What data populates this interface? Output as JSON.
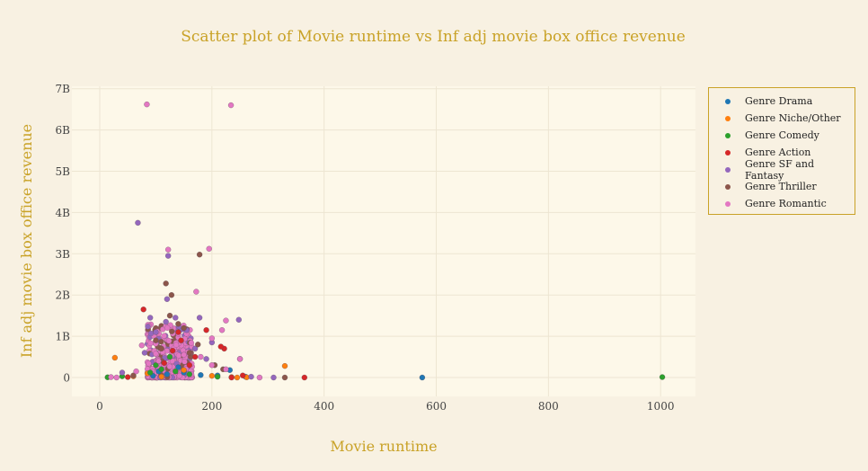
{
  "colors": {
    "page_bg": "#f8f1e2",
    "plot_bg": "#fdf8e9",
    "grid": "#ede5d2",
    "accent": "#c9a227",
    "tick_text": "#444444"
  },
  "chart_data": {
    "type": "scatter",
    "title": "Scatter plot of Movie runtime vs Inf adj movie box office revenue",
    "xlabel": "Movie runtime",
    "ylabel": "Inf adj movie box office revenue",
    "xlim": [
      -50,
      1060
    ],
    "ylim": [
      -450000000,
      7100000000
    ],
    "x_ticks": [
      0,
      200,
      400,
      600,
      800,
      1000
    ],
    "x_tick_labels": [
      "0",
      "200",
      "400",
      "600",
      "800",
      "1000"
    ],
    "y_ticks": [
      0,
      1000000000,
      2000000000,
      3000000000,
      4000000000,
      5000000000,
      6000000000,
      7000000000
    ],
    "y_tick_labels": [
      "0",
      "1B",
      "2B",
      "3B",
      "4B",
      "5B",
      "6B",
      "7B"
    ],
    "grid": true,
    "legend_position": "top-right",
    "series": [
      {
        "name": "Genre Drama",
        "color": "#1f77b4",
        "points": [
          [
            575,
            0
          ],
          [
            232,
            180000000
          ],
          [
            210,
            50000000
          ],
          [
            150,
            120000000
          ],
          [
            120,
            80000000
          ],
          [
            95,
            40000000
          ],
          [
            180,
            60000000
          ],
          [
            260,
            20000000
          ],
          [
            140,
            250000000
          ],
          [
            105,
            150000000
          ]
        ]
      },
      {
        "name": "Genre Niche/Other",
        "color": "#ff7f0e",
        "points": [
          [
            27,
            480000000
          ],
          [
            330,
            280000000
          ],
          [
            245,
            0
          ],
          [
            235,
            10000000
          ],
          [
            60,
            30000000
          ],
          [
            85,
            100000000
          ],
          [
            150,
            180000000
          ],
          [
            200,
            40000000
          ],
          [
            110,
            20000000
          ],
          [
            262,
            5000000
          ]
        ]
      },
      {
        "name": "Genre Comedy",
        "color": "#2ca02c",
        "points": [
          [
            1003,
            10000000
          ],
          [
            14,
            5000000
          ],
          [
            40,
            30000000
          ],
          [
            90,
            120000000
          ],
          [
            100,
            300000000
          ],
          [
            110,
            200000000
          ],
          [
            125,
            500000000
          ],
          [
            135,
            150000000
          ],
          [
            160,
            80000000
          ],
          [
            210,
            20000000
          ]
        ]
      },
      {
        "name": "Genre Action",
        "color": "#d62728",
        "points": [
          [
            78,
            1650000000
          ],
          [
            190,
            1150000000
          ],
          [
            222,
            700000000
          ],
          [
            216,
            750000000
          ],
          [
            365,
            0
          ],
          [
            255,
            50000000
          ],
          [
            235,
            0
          ],
          [
            50,
            10000000
          ],
          [
            145,
            900000000
          ],
          [
            130,
            650000000
          ],
          [
            170,
            500000000
          ],
          [
            115,
            350000000
          ],
          [
            160,
            300000000
          ],
          [
            140,
            1100000000
          ]
        ]
      },
      {
        "name": "Genre SF and Fantasy",
        "color": "#9467bd",
        "points": [
          [
            68,
            3750000000
          ],
          [
            122,
            2950000000
          ],
          [
            120,
            1900000000
          ],
          [
            90,
            1450000000
          ],
          [
            248,
            1400000000
          ],
          [
            178,
            1450000000
          ],
          [
            135,
            1450000000
          ],
          [
            155,
            1150000000
          ],
          [
            100,
            1100000000
          ],
          [
            200,
            850000000
          ],
          [
            310,
            0
          ],
          [
            40,
            120000000
          ],
          [
            80,
            600000000
          ],
          [
            170,
            700000000
          ],
          [
            190,
            450000000
          ],
          [
            250,
            450000000
          ],
          [
            270,
            20000000
          ],
          [
            118,
            1350000000
          ]
        ]
      },
      {
        "name": "Genre Thriller",
        "color": "#8c564b",
        "points": [
          [
            178,
            2980000000
          ],
          [
            118,
            2280000000
          ],
          [
            128,
            2000000000
          ],
          [
            125,
            1500000000
          ],
          [
            150,
            1200000000
          ],
          [
            175,
            800000000
          ],
          [
            330,
            0
          ],
          [
            205,
            300000000
          ],
          [
            100,
            900000000
          ],
          [
            140,
            1300000000
          ],
          [
            160,
            600000000
          ],
          [
            110,
            700000000
          ],
          [
            60,
            50000000
          ],
          [
            220,
            200000000
          ]
        ]
      },
      {
        "name": "Genre Romantic",
        "color": "#e377c2",
        "points": [
          [
            84,
            6620000000
          ],
          [
            234,
            6600000000
          ],
          [
            122,
            3100000000
          ],
          [
            195,
            3120000000
          ],
          [
            172,
            2080000000
          ],
          [
            225,
            1380000000
          ],
          [
            218,
            1150000000
          ],
          [
            200,
            950000000
          ],
          [
            250,
            450000000
          ],
          [
            225,
            200000000
          ],
          [
            200,
            300000000
          ],
          [
            75,
            780000000
          ],
          [
            150,
            550000000
          ],
          [
            180,
            500000000
          ],
          [
            30,
            0
          ],
          [
            285,
            0
          ],
          [
            20,
            10000000
          ],
          [
            65,
            150000000
          ],
          [
            105,
            400000000
          ]
        ]
      }
    ]
  }
}
